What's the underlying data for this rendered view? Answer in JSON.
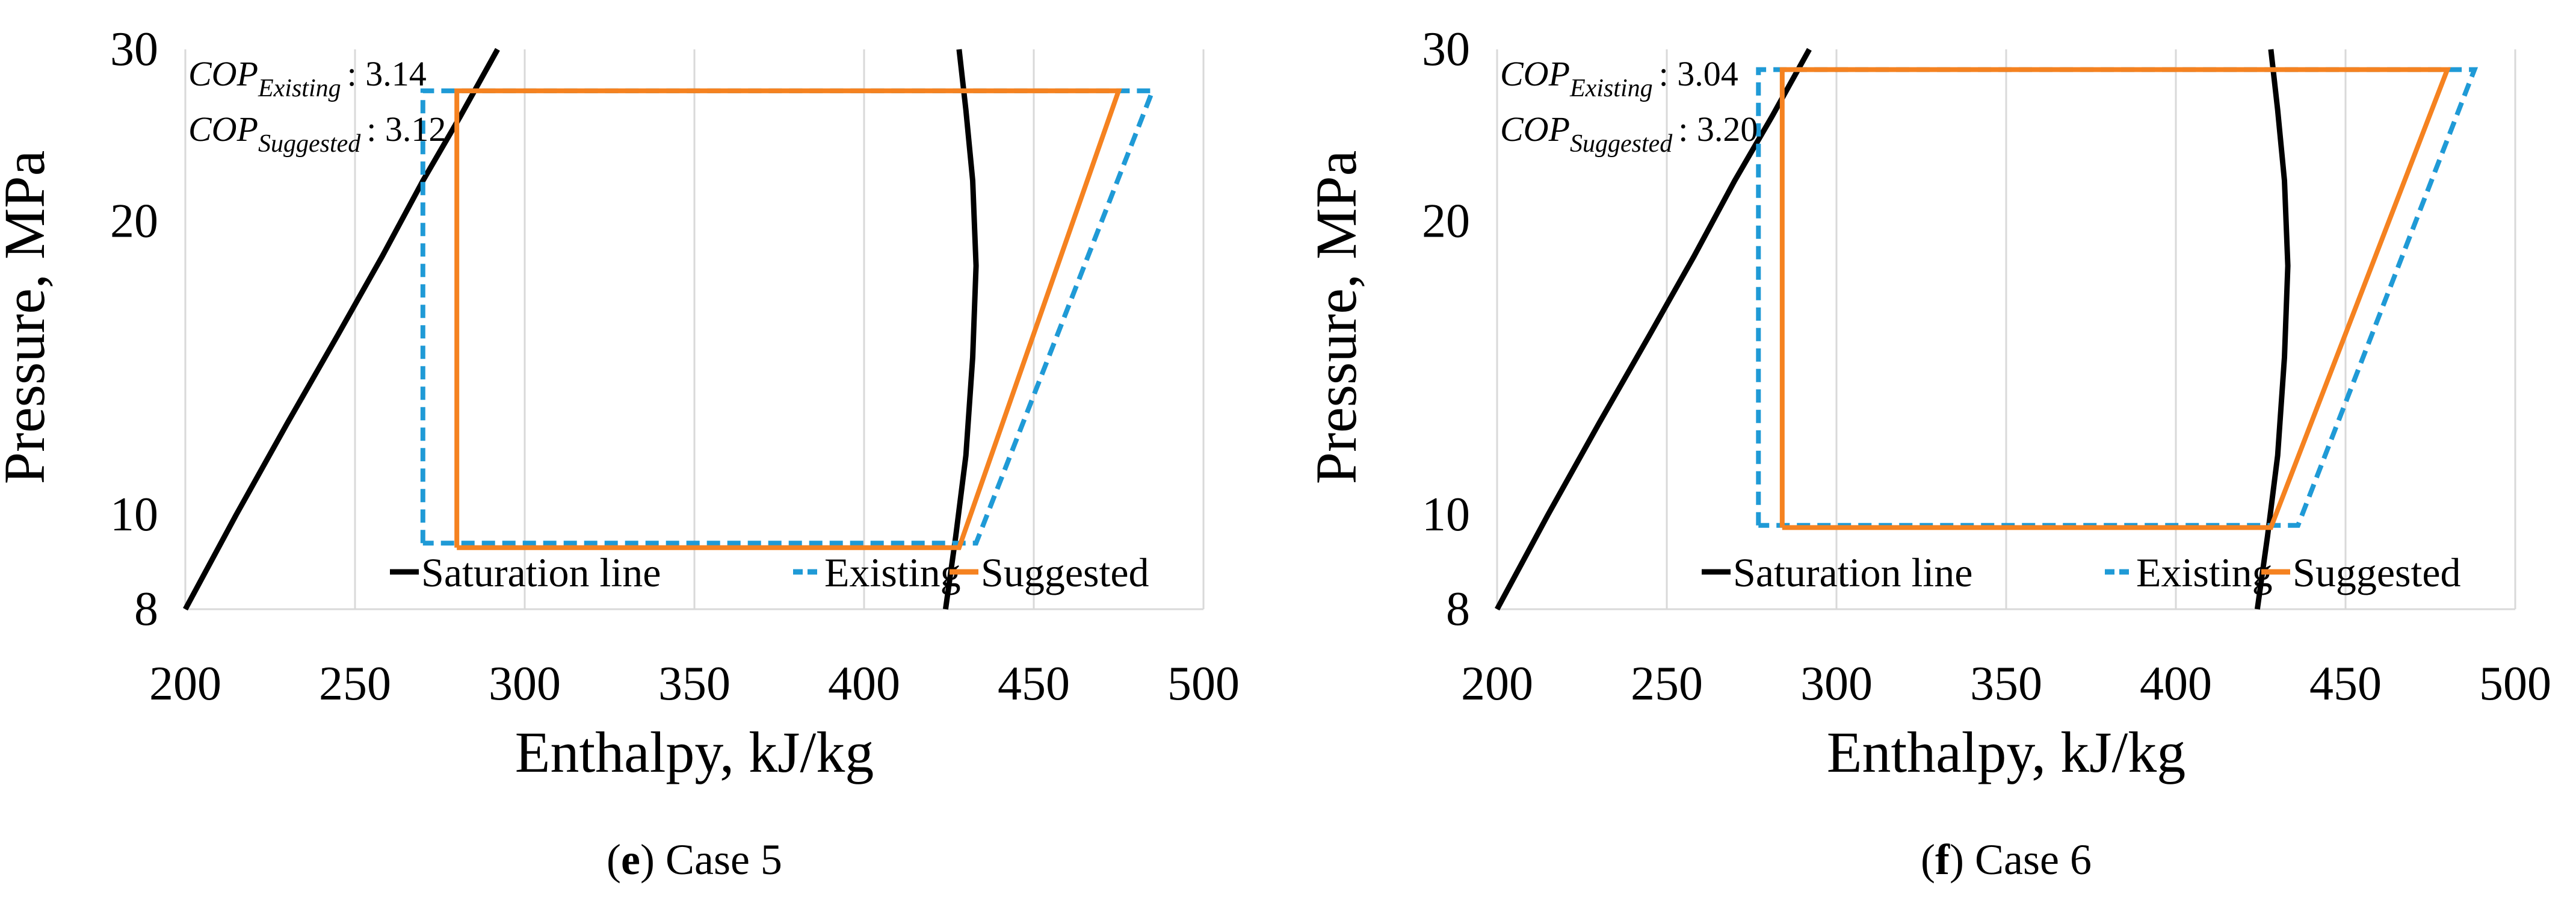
{
  "chart_data": [
    {
      "type": "line",
      "caption_letter": "e",
      "caption_text": ") Case 5",
      "caption_open": "(",
      "xlabel": "Enthalpy, kJ/kg",
      "ylabel": "Pressure, MPa",
      "xlim": [
        200,
        500
      ],
      "ylim": [
        8,
        30
      ],
      "y_scale": "log",
      "x_ticks": [
        "200",
        "250",
        "300",
        "350",
        "400",
        "450",
        "500"
      ],
      "y_ticks": [
        "8",
        "10",
        "20",
        "30"
      ],
      "grid": "vertical",
      "legend_position": "bottom",
      "annotations": [
        {
          "base": "COP",
          "sub": "Existing",
          "text": ": 3.14"
        },
        {
          "base": "COP",
          "sub": "Suggested",
          "text": ": 3.12"
        }
      ],
      "series": [
        {
          "name": "Saturation line",
          "color": "#000000",
          "dash": "solid",
          "segments": [
            {
              "x": [
                200,
                215,
                230,
                245,
                258,
                270,
                281,
                292
              ],
              "y": [
                8,
                10,
                12.4,
                15.3,
                18.4,
                22,
                25.6,
                30
              ]
            },
            {
              "x": [
                424,
                427,
                430,
                432,
                433,
                432,
                430,
                428
              ],
              "y": [
                8,
                9.5,
                11.5,
                14.5,
                18,
                22,
                26,
                30
              ]
            }
          ]
        },
        {
          "name": "Existing",
          "color": "#1f9ad6",
          "dash": "dashed",
          "x": [
            270,
            270,
            433,
            485,
            270
          ],
          "y": [
            9.35,
            27.2,
            9.35,
            27.2,
            27.2
          ],
          "path_x": [
            270,
            270,
            485,
            433,
            270
          ],
          "path_y": [
            9.35,
            27.2,
            27.2,
            9.35,
            9.35
          ]
        },
        {
          "name": "Suggested",
          "color": "#f58220",
          "dash": "solid",
          "path_x": [
            280,
            280,
            475,
            428,
            280
          ],
          "path_y": [
            9.25,
            27.2,
            27.2,
            9.25,
            9.25
          ]
        }
      ]
    },
    {
      "type": "line",
      "caption_letter": "f",
      "caption_text": ") Case 6",
      "caption_open": "(",
      "xlabel": "Enthalpy, kJ/kg",
      "ylabel": "Pressure, MPa",
      "xlim": [
        200,
        500
      ],
      "ylim": [
        8,
        30
      ],
      "y_scale": "log",
      "x_ticks": [
        "200",
        "250",
        "300",
        "350",
        "400",
        "450",
        "500"
      ],
      "y_ticks": [
        "8",
        "10",
        "20",
        "30"
      ],
      "grid": "vertical",
      "legend_position": "bottom",
      "annotations": [
        {
          "base": "COP",
          "sub": "Existing",
          "text": ": 3.04"
        },
        {
          "base": "COP",
          "sub": "Suggested",
          "text": ": 3.20"
        }
      ],
      "series": [
        {
          "name": "Saturation line",
          "color": "#000000",
          "dash": "solid",
          "segments": [
            {
              "x": [
                200,
                215,
                230,
                245,
                258,
                270,
                281,
                292
              ],
              "y": [
                8,
                10,
                12.4,
                15.3,
                18.4,
                22,
                25.6,
                30
              ]
            },
            {
              "x": [
                424,
                427,
                430,
                432,
                433,
                432,
                430,
                428
              ],
              "y": [
                8,
                9.5,
                11.5,
                14.5,
                18,
                22,
                26,
                30
              ]
            }
          ]
        },
        {
          "name": "Existing",
          "color": "#1f9ad6",
          "dash": "dashed",
          "path_x": [
            277,
            277,
            488,
            436,
            277
          ],
          "path_y": [
            9.75,
            28.6,
            28.6,
            9.75,
            9.75
          ]
        },
        {
          "name": "Suggested",
          "color": "#f58220",
          "dash": "solid",
          "path_x": [
            284,
            284,
            480,
            428,
            284
          ],
          "path_y": [
            9.7,
            28.6,
            28.6,
            9.7,
            9.7
          ]
        }
      ]
    }
  ]
}
